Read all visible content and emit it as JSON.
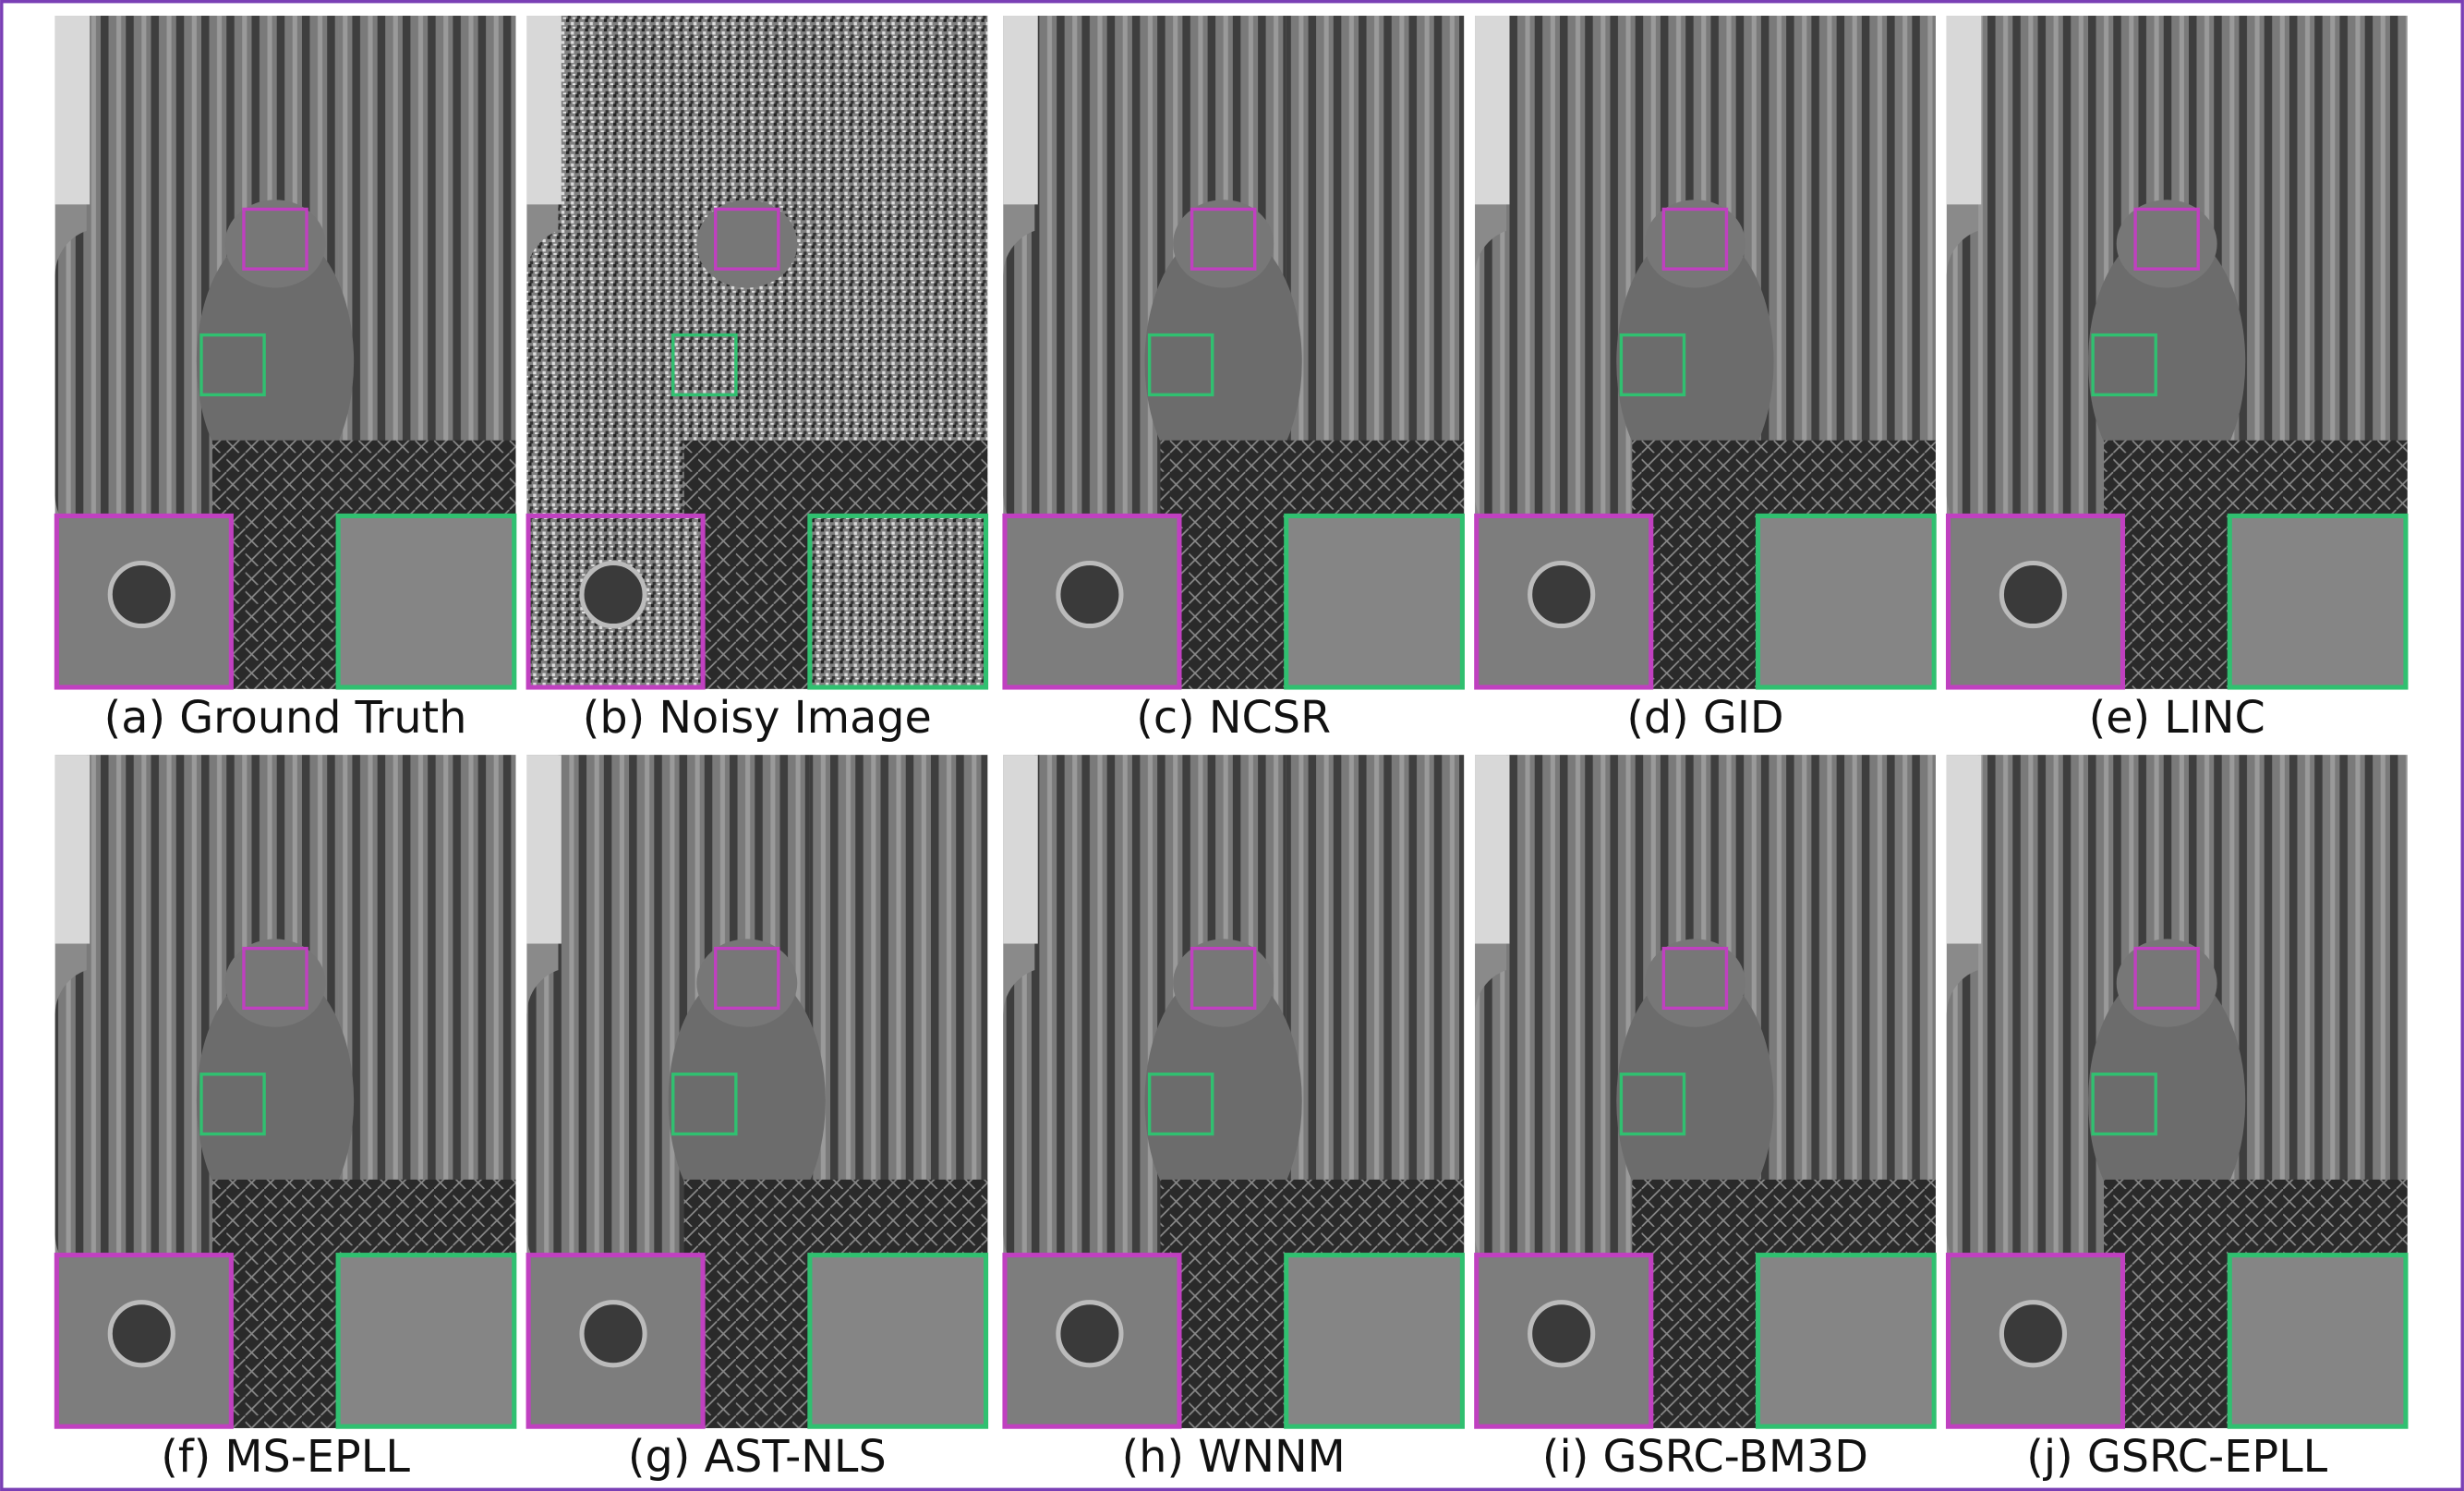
{
  "panels": [
    {
      "caption": "(a) Ground Truth"
    },
    {
      "caption": "(b) Noisy Image"
    },
    {
      "caption": "(c) NCSR"
    },
    {
      "caption": "(d) GID"
    },
    {
      "caption": "(e) LINC"
    },
    {
      "caption": "(f) MS-EPLL"
    },
    {
      "caption": "(g) AST-NLS"
    },
    {
      "caption": "(h) WNNM"
    },
    {
      "caption": "(i) GSRC-BM3D"
    },
    {
      "caption": "(j) GSRC-EPLL"
    }
  ]
}
